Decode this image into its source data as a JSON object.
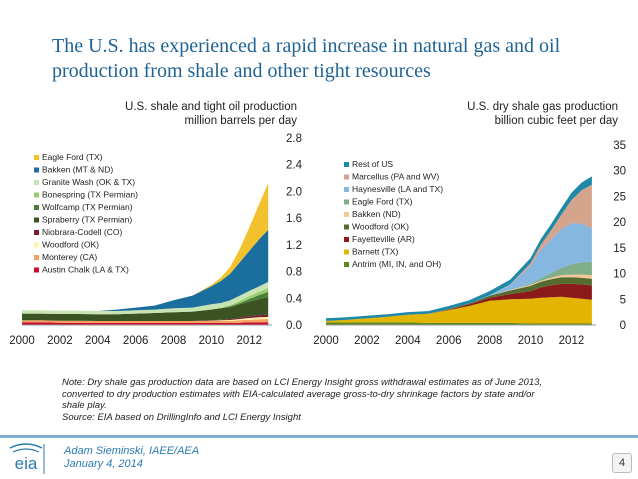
{
  "slide": {
    "title_line1": "The U.S. has experienced a rapid increase in natural gas and oil",
    "title_line2": "production from shale and other tight resources",
    "note_lines": [
      "Note: Dry shale gas production data are based on LCI Energy Insight gross withdrawal estimates as of June 2013,",
      "converted to dry production estimates with EIA-calculated average gross-to-dry shrinkage factors by state and/or",
      "shale play.",
      "Source:  EIA based on DrillingInfo and LCI Energy Insight"
    ],
    "footer_name": "Adam Sieminski, IAEE/AEA",
    "footer_date": "January 4, 2014",
    "page_number": "4",
    "logo_text": "eia"
  },
  "chart_data": [
    {
      "type": "area",
      "stacked": true,
      "title_line1": "U.S. shale and tight oil production",
      "title_line2": "million barrels per day",
      "x": [
        2000,
        2001,
        2002,
        2003,
        2004,
        2005,
        2006,
        2007,
        2008,
        2009,
        2010,
        2010.5,
        2011,
        2011.5,
        2012,
        2012.5,
        2013
      ],
      "xticks": [
        "2000",
        "2002",
        "2004",
        "2006",
        "2008",
        "2010",
        "2012"
      ],
      "xlim": [
        2000,
        2013.2
      ],
      "ylim": [
        0,
        2.8
      ],
      "yticks": [
        "0.0",
        "0.4",
        "0.8",
        "1.2",
        "1.6",
        "2.0",
        "2.4",
        "2.8"
      ],
      "y_axis_side": "right",
      "legend_position": "left",
      "series": [
        {
          "name": "Austin Chalk (LA & TX)",
          "color": "#c8102e",
          "values": [
            0.04,
            0.04,
            0.035,
            0.035,
            0.03,
            0.03,
            0.03,
            0.03,
            0.03,
            0.03,
            0.03,
            0.03,
            0.03,
            0.035,
            0.04,
            0.04,
            0.04
          ]
        },
        {
          "name": "Monterey (CA)",
          "color": "#f4a261",
          "values": [
            0.03,
            0.03,
            0.03,
            0.03,
            0.03,
            0.03,
            0.03,
            0.03,
            0.03,
            0.03,
            0.03,
            0.03,
            0.03,
            0.035,
            0.04,
            0.045,
            0.05
          ]
        },
        {
          "name": "Woodford (OK)",
          "color": "#fff3b0",
          "values": [
            0,
            0,
            0,
            0,
            0,
            0,
            0,
            0,
            0,
            0,
            0.005,
            0.01,
            0.015,
            0.02,
            0.025,
            0.03,
            0.03
          ]
        },
        {
          "name": "Niobrara-Codell (CO)",
          "color": "#7b1e2c",
          "values": [
            0,
            0,
            0,
            0,
            0,
            0,
            0,
            0,
            0,
            0,
            0.005,
            0.01,
            0.015,
            0.02,
            0.025,
            0.03,
            0.035
          ]
        },
        {
          "name": "Spraberry (TX Permian)",
          "color": "#3b5323",
          "values": [
            0.1,
            0.1,
            0.1,
            0.1,
            0.1,
            0.1,
            0.11,
            0.12,
            0.13,
            0.14,
            0.16,
            0.17,
            0.18,
            0.2,
            0.22,
            0.24,
            0.26
          ]
        },
        {
          "name": "Wolfcamp (TX Permian)",
          "color": "#4b7f3a",
          "values": [
            0,
            0,
            0,
            0,
            0,
            0,
            0,
            0,
            0,
            0,
            0,
            0,
            0.01,
            0.02,
            0.04,
            0.06,
            0.08
          ]
        },
        {
          "name": "Bonespring (TX Permian)",
          "color": "#9acd70",
          "values": [
            0,
            0,
            0,
            0,
            0,
            0,
            0,
            0,
            0,
            0,
            0.01,
            0.01,
            0.02,
            0.03,
            0.04,
            0.05,
            0.06
          ]
        },
        {
          "name": "Granite Wash (OK & TX)",
          "color": "#c9e4b4",
          "values": [
            0.05,
            0.05,
            0.05,
            0.05,
            0.05,
            0.05,
            0.05,
            0.05,
            0.06,
            0.06,
            0.07,
            0.07,
            0.07,
            0.08,
            0.08,
            0.08,
            0.09
          ]
        },
        {
          "name": "Bakken (MT & ND)",
          "color": "#1a6f9e",
          "values": [
            0,
            0,
            0,
            0,
            0,
            0.02,
            0.04,
            0.06,
            0.12,
            0.18,
            0.27,
            0.33,
            0.4,
            0.5,
            0.6,
            0.7,
            0.78
          ]
        },
        {
          "name": "Eagle Ford (TX)",
          "color": "#f2c12e",
          "values": [
            0,
            0,
            0,
            0,
            0,
            0,
            0,
            0,
            0,
            0,
            0.02,
            0.05,
            0.1,
            0.2,
            0.35,
            0.52,
            0.7
          ]
        }
      ]
    },
    {
      "type": "area",
      "stacked": true,
      "title_line1": "U.S. dry shale gas production",
      "title_line2": "billion cubic feet per day",
      "x": [
        2000,
        2001,
        2002,
        2003,
        2004,
        2005,
        2006,
        2007,
        2008,
        2009,
        2010,
        2010.5,
        2011,
        2011.5,
        2012,
        2012.5,
        2013
      ],
      "xticks": [
        "2000",
        "2002",
        "2004",
        "2006",
        "2008",
        "2010",
        "2012"
      ],
      "xlim": [
        2000,
        2013.2
      ],
      "ylim": [
        0,
        35
      ],
      "yticks": [
        "0",
        "5",
        "10",
        "15",
        "20",
        "25",
        "30",
        "35"
      ],
      "y_axis_side": "right",
      "legend_position": "left",
      "series": [
        {
          "name": "Antrim (MI, IN, and OH)",
          "color": "#5e8a1c",
          "values": [
            0.5,
            0.5,
            0.5,
            0.5,
            0.5,
            0.4,
            0.4,
            0.4,
            0.4,
            0.4,
            0.3,
            0.3,
            0.3,
            0.3,
            0.3,
            0.3,
            0.3
          ]
        },
        {
          "name": "Barnett (TX)",
          "color": "#e3b400",
          "values": [
            0.3,
            0.5,
            0.8,
            1.1,
            1.5,
            1.8,
            2.5,
            3.3,
            4.3,
            4.6,
            4.8,
            5.0,
            5.1,
            5.2,
            5.0,
            4.8,
            4.6
          ]
        },
        {
          "name": "Fayetteville (AR)",
          "color": "#8b1a1a",
          "values": [
            0,
            0,
            0,
            0,
            0,
            0,
            0.1,
            0.3,
            0.6,
            1.0,
            1.5,
            2.0,
            2.3,
            2.5,
            2.7,
            2.8,
            2.8
          ]
        },
        {
          "name": "Woodford (OK)",
          "color": "#556b2f",
          "values": [
            0,
            0,
            0,
            0,
            0,
            0,
            0.1,
            0.2,
            0.4,
            0.7,
            1.0,
            1.1,
            1.2,
            1.3,
            1.3,
            1.3,
            1.3
          ]
        },
        {
          "name": "Bakken (ND)",
          "color": "#f5c89a",
          "values": [
            0,
            0,
            0,
            0,
            0,
            0,
            0,
            0,
            0,
            0.1,
            0.2,
            0.2,
            0.3,
            0.4,
            0.5,
            0.6,
            0.7
          ]
        },
        {
          "name": "Eagle Ford (TX)",
          "color": "#7fae88",
          "values": [
            0,
            0,
            0,
            0,
            0,
            0,
            0,
            0,
            0,
            0,
            0.2,
            0.5,
            0.9,
            1.4,
            2.0,
            2.4,
            2.6
          ]
        },
        {
          "name": "Haynesville (LA and TX)",
          "color": "#86b7e0",
          "values": [
            0,
            0,
            0,
            0,
            0,
            0,
            0,
            0,
            0.1,
            1.0,
            3.5,
            5.5,
            6.5,
            7.5,
            8.0,
            7.5,
            6.5
          ]
        },
        {
          "name": "Marcellus (PA and WV)",
          "color": "#d4a48c",
          "values": [
            0,
            0,
            0,
            0,
            0,
            0,
            0,
            0,
            0,
            0.1,
            0.5,
            1.0,
            1.8,
            2.8,
            4.5,
            6.5,
            8.5
          ]
        },
        {
          "name": "Rest of US",
          "color": "#1e88a8",
          "values": [
            0.5,
            0.5,
            0.5,
            0.5,
            0.5,
            0.5,
            0.6,
            0.6,
            0.8,
            0.9,
            1.0,
            1.1,
            1.2,
            1.3,
            1.4,
            1.5,
            1.6
          ]
        }
      ]
    }
  ]
}
